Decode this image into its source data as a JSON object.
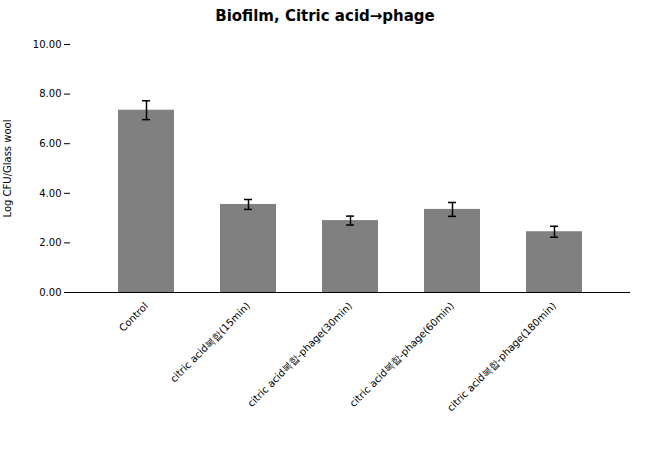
{
  "chart_data": {
    "type": "bar",
    "title": "Biofilm, Citric acid→phage",
    "ylabel": "Log CFU/Glass wool",
    "categories": [
      "Control",
      "citric acid복합(15min)",
      "citric acid복합-phage(30min)",
      "citric acid복합-phage(60min)",
      "citric acid복합-phage(180min)"
    ],
    "values": [
      7.35,
      3.55,
      2.9,
      3.35,
      2.45
    ],
    "errors": [
      0.38,
      0.2,
      0.18,
      0.28,
      0.22
    ],
    "color": "#808080",
    "ylim": [
      0.0,
      10.0
    ],
    "yticks": [
      {
        "value": 0,
        "label": "0.00"
      },
      {
        "value": 2,
        "label": "2.00"
      },
      {
        "value": 4,
        "label": "4.00"
      },
      {
        "value": 6,
        "label": "6.00"
      },
      {
        "value": 8,
        "label": "8.00"
      },
      {
        "value": 10,
        "label": "10.00"
      }
    ],
    "grid": false
  }
}
